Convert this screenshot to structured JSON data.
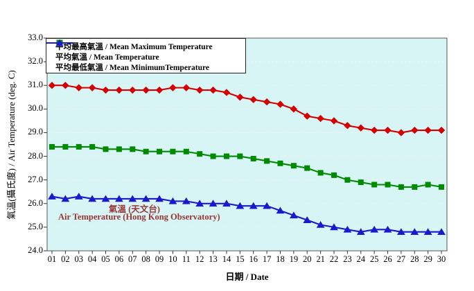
{
  "chart_data": {
    "type": "line",
    "xlabel": "日期 / Date",
    "ylabel": "氣溫(攝氏度) / Air Temperature (deg. C)",
    "ylim": [
      24.0,
      33.0
    ],
    "ytick_step": 1.0,
    "yticks": [
      "33.0",
      "32.0",
      "31.0",
      "30.0",
      "29.0",
      "28.0",
      "27.0",
      "26.0",
      "25.0",
      "24.0"
    ],
    "x": [
      "01",
      "02",
      "03",
      "04",
      "05",
      "06",
      "07",
      "08",
      "09",
      "10",
      "11",
      "12",
      "13",
      "14",
      "15",
      "16",
      "17",
      "18",
      "19",
      "20",
      "21",
      "22",
      "23",
      "24",
      "25",
      "26",
      "27",
      "28",
      "29",
      "30"
    ],
    "grid": "horizontal-dashed",
    "legend_position": "top-left-inside",
    "plot_bg": "#d8f5f6",
    "gridline_color": "#f2f2f2",
    "series": [
      {
        "name": "平均最高氣溫 / Mean Maximum Temperature",
        "marker": "diamond",
        "color": "#d40000",
        "values": [
          31.0,
          31.0,
          30.9,
          30.9,
          30.8,
          30.8,
          30.8,
          30.8,
          30.8,
          30.9,
          30.9,
          30.8,
          30.8,
          30.7,
          30.5,
          30.4,
          30.3,
          30.2,
          30.0,
          29.7,
          29.6,
          29.5,
          29.3,
          29.2,
          29.1,
          29.1,
          29.0,
          29.1,
          29.1,
          29.1
        ]
      },
      {
        "name": "平均氣溫 / Mean Temperature",
        "marker": "square",
        "color": "#008a00",
        "values": [
          28.4,
          28.4,
          28.4,
          28.4,
          28.3,
          28.3,
          28.3,
          28.2,
          28.2,
          28.2,
          28.2,
          28.1,
          28.0,
          28.0,
          28.0,
          27.9,
          27.8,
          27.7,
          27.6,
          27.5,
          27.3,
          27.2,
          27.0,
          26.9,
          26.8,
          26.8,
          26.7,
          26.7,
          26.8,
          26.7
        ]
      },
      {
        "name": "平均最低氣溫 / Mean MinimumTemperature",
        "marker": "triangle",
        "color": "#1a1acc",
        "values": [
          26.3,
          26.2,
          26.3,
          26.2,
          26.2,
          26.2,
          26.2,
          26.2,
          26.2,
          26.1,
          26.1,
          26.0,
          26.0,
          26.0,
          25.9,
          25.9,
          25.9,
          25.7,
          25.5,
          25.3,
          25.1,
          25.0,
          24.9,
          24.8,
          24.9,
          24.9,
          24.8,
          24.8,
          24.8,
          24.8
        ]
      }
    ],
    "annotation": {
      "line1": "氣溫 (天文台)",
      "line2": "Air Temperature (Hong Kong Observatory)",
      "color": "#993333"
    }
  }
}
